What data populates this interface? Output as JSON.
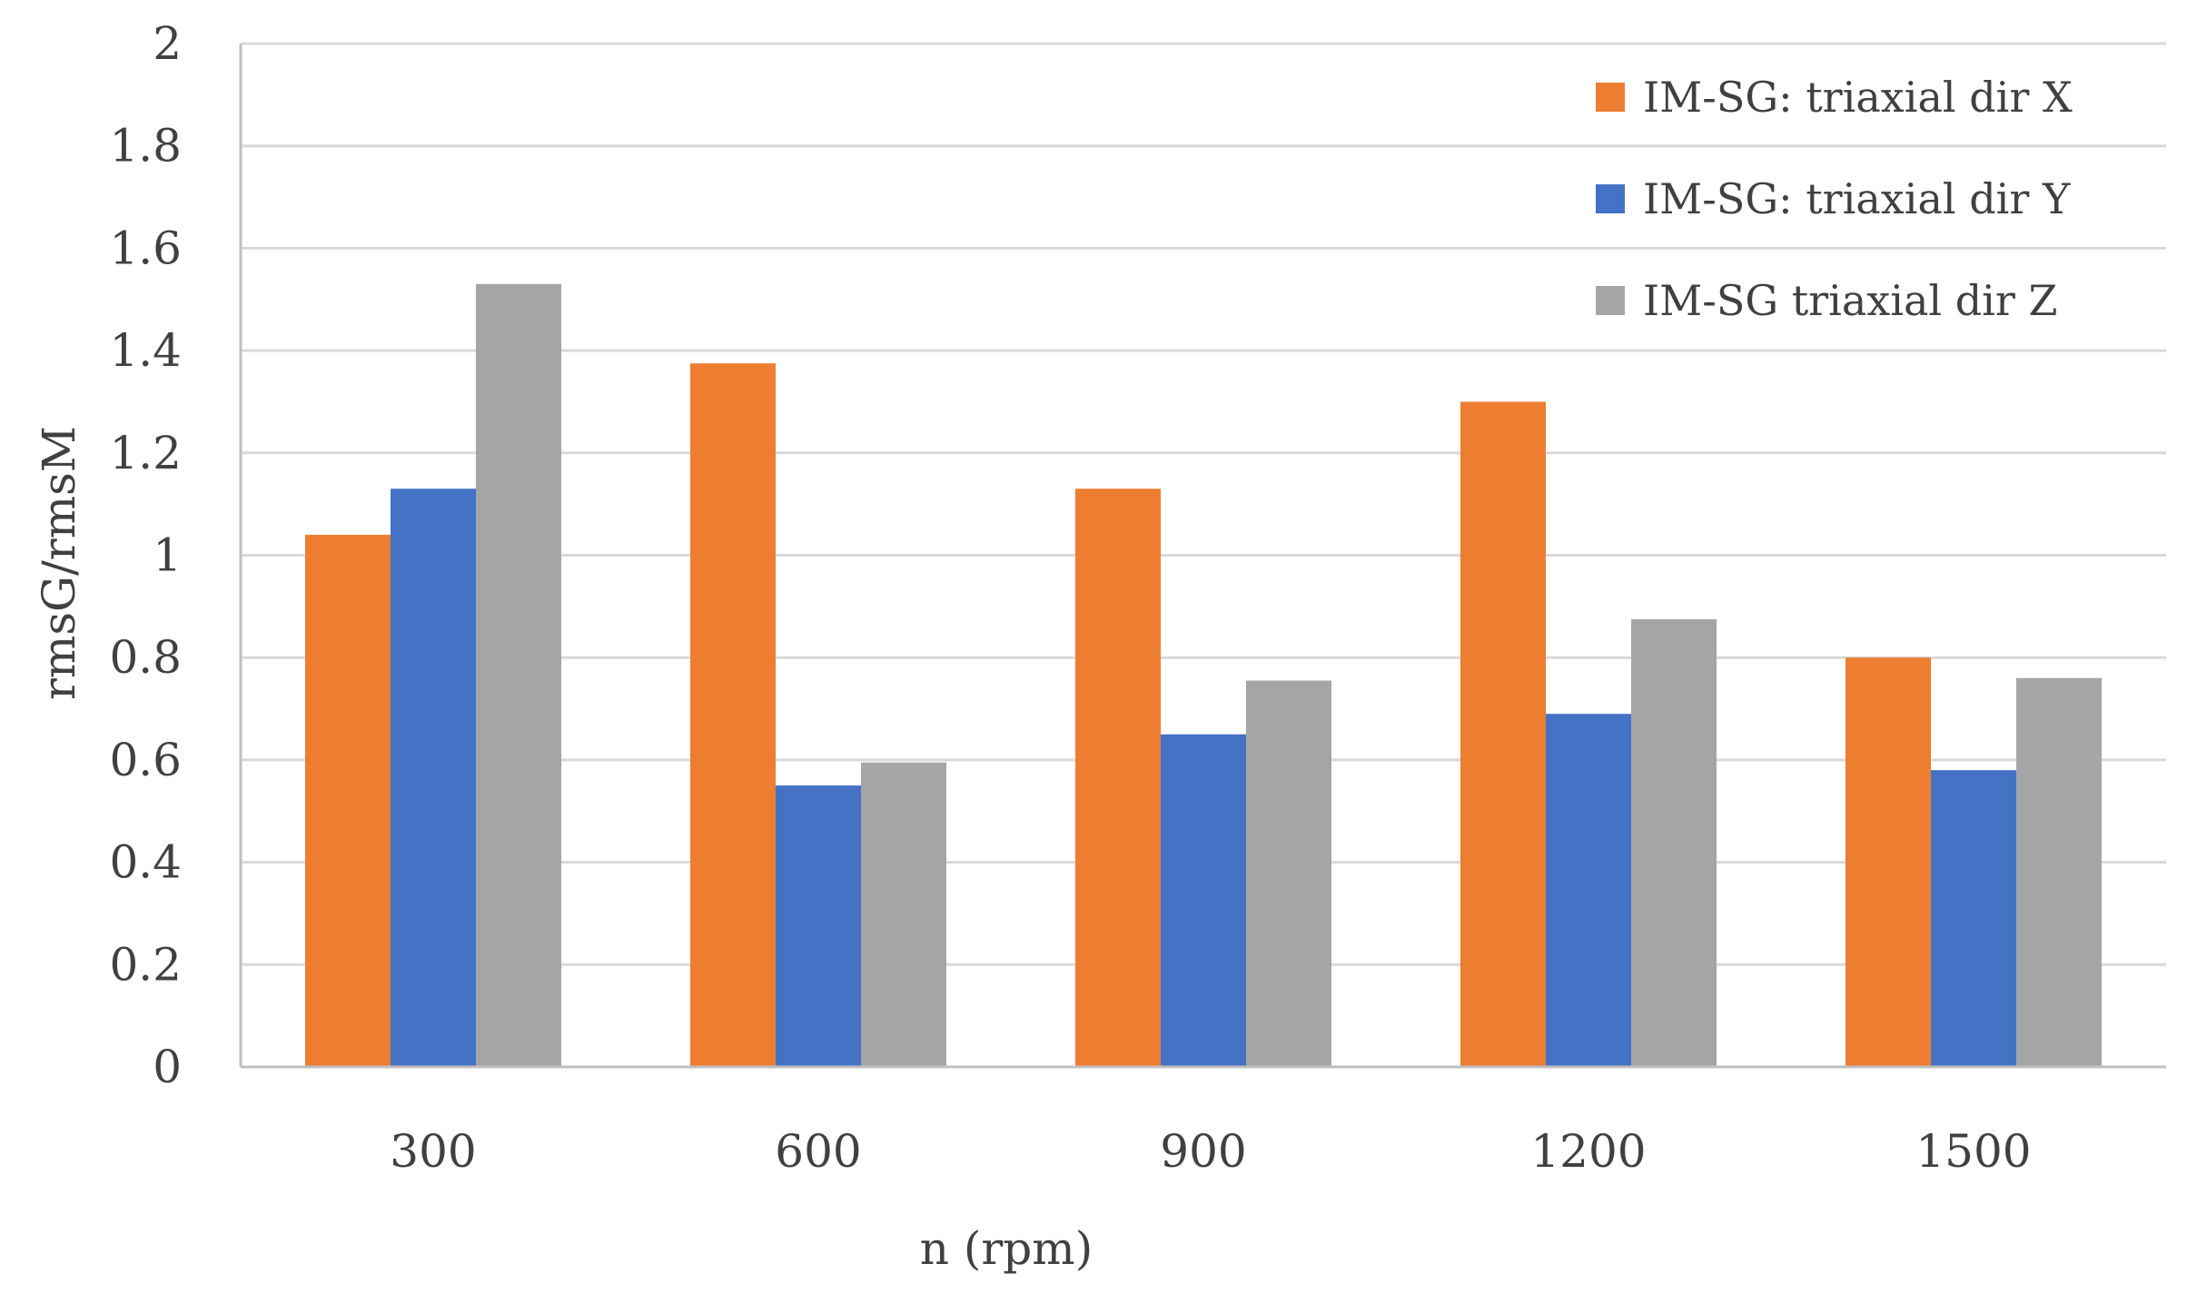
{
  "chart_data": {
    "type": "bar",
    "title": "",
    "xlabel": "n (rpm)",
    "ylabel": "rmsG/rmsM",
    "categories": [
      "300",
      "600",
      "900",
      "1200",
      "1500"
    ],
    "series": [
      {
        "name": "IM-SG: triaxial dir X",
        "color": "#ED7D31",
        "values": [
          1.04,
          1.375,
          1.13,
          1.3,
          0.8
        ]
      },
      {
        "name": "IM-SG: triaxial dir Y",
        "color": "#4472C4",
        "values": [
          1.13,
          0.55,
          0.65,
          0.69,
          0.58
        ]
      },
      {
        "name": "IM-SG triaxial dir Z",
        "color": "#A5A5A5",
        "values": [
          1.53,
          0.595,
          0.755,
          0.875,
          0.76
        ]
      }
    ],
    "ylim": [
      0,
      2
    ],
    "yticks": [
      "0",
      "0.2",
      "0.4",
      "0.6",
      "0.8",
      "1",
      "1.2",
      "1.4",
      "1.6",
      "1.8",
      "2"
    ],
    "grid": true,
    "legend_position": "top-right",
    "colors": {
      "gridline": "#D9D9D9",
      "axis": "#BFBFBF",
      "text": "#404040"
    }
  }
}
